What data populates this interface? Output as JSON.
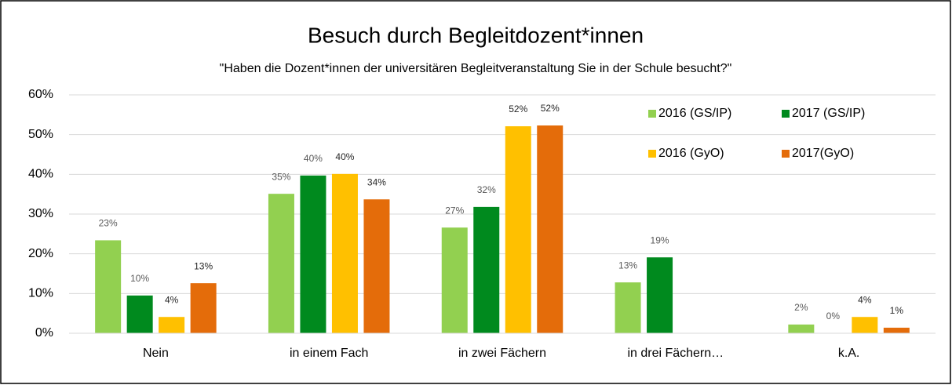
{
  "chart_data": {
    "type": "bar",
    "title": "Besuch durch Begleitdozent*innen",
    "subtitle": "\"Haben die Dozent*innen der universitären Begleitveranstaltung Sie in der Schule besucht?\"",
    "categories": [
      "Nein",
      "in einem Fach",
      "in zwei Fächern",
      "in drei Fächern…",
      "k.A."
    ],
    "series": [
      {
        "name": "2016 (GS/IP)",
        "color": "#92d050",
        "values": [
          23.4,
          35.1,
          26.6,
          12.8,
          2.2
        ],
        "value_labels": [
          "23%",
          "35%",
          "27%",
          "13%",
          "2%"
        ]
      },
      {
        "name": "2017 (GS/IP)",
        "color": "#008a1e",
        "values": [
          9.5,
          39.7,
          31.8,
          19.1,
          0
        ],
        "value_labels": [
          "10%",
          "40%",
          "32%",
          "19%",
          "0%"
        ]
      },
      {
        "name": "2016 (GyO)",
        "color": "#ffc000",
        "values": [
          4.1,
          40.1,
          52.1,
          null,
          4.1
        ],
        "value_labels": [
          "4%",
          "40%",
          "52%",
          null,
          "4%"
        ]
      },
      {
        "name": "2017(GyO)",
        "color": "#e46c0a",
        "values": [
          12.6,
          33.7,
          52.3,
          null,
          1.4
        ],
        "value_labels": [
          "13%",
          "34%",
          "52%",
          null,
          "1%"
        ]
      }
    ],
    "ylim": [
      0,
      60
    ],
    "yticks": [
      {
        "value": 0,
        "label": "0%"
      },
      {
        "value": 10,
        "label": "10%"
      },
      {
        "value": 20,
        "label": "20%"
      },
      {
        "value": 30,
        "label": "30%"
      },
      {
        "value": 40,
        "label": "40%"
      },
      {
        "value": 50,
        "label": "50%"
      },
      {
        "value": 60,
        "label": "60%"
      }
    ],
    "grid": true,
    "legend": "top-right"
  }
}
